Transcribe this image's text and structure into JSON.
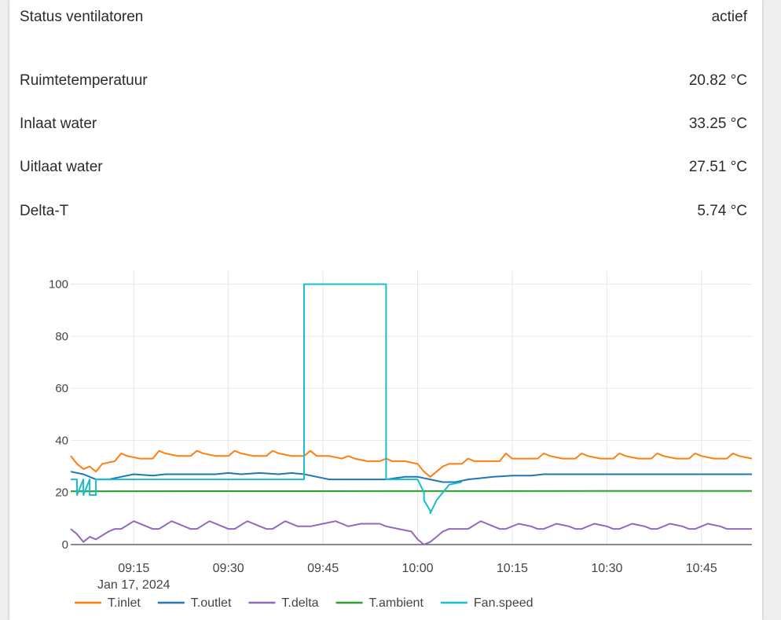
{
  "status": {
    "label": "Status ventilatoren",
    "value": "actief"
  },
  "readings": [
    {
      "label": "Ruimtetemperatuur",
      "value": "20.82 °C"
    },
    {
      "label": "Inlaat water",
      "value": "33.25 °C"
    },
    {
      "label": "Uitlaat water",
      "value": "27.51 °C"
    },
    {
      "label": "Delta-T",
      "value": "5.74 °C"
    }
  ],
  "chart_data": {
    "type": "line",
    "x_ticks": [
      "09:15",
      "09:30",
      "09:45",
      "10:00",
      "10:15",
      "10:30",
      "10:45"
    ],
    "x_date_label": "Jan 17, 2024",
    "y_ticks": [
      0,
      20,
      40,
      60,
      80,
      100
    ],
    "xlim": [
      "09:05",
      "10:53"
    ],
    "ylim": [
      0,
      105
    ],
    "grid": true,
    "legend_position": "bottom",
    "series": [
      {
        "name": "T.inlet",
        "color": "#ff7f0e",
        "x": [
          "09:05",
          "09:06",
          "09:07",
          "09:08",
          "09:09",
          "09:10",
          "09:12",
          "09:13",
          "09:14",
          "09:16",
          "09:18",
          "09:19",
          "09:20",
          "09:22",
          "09:24",
          "09:25",
          "09:26",
          "09:28",
          "09:30",
          "09:31",
          "09:32",
          "09:34",
          "09:36",
          "09:37",
          "09:38",
          "09:40",
          "09:42",
          "09:43",
          "09:44",
          "09:46",
          "09:48",
          "09:49",
          "09:50",
          "09:52",
          "09:54",
          "09:55",
          "09:56",
          "09:58",
          "10:00",
          "10:01",
          "10:02",
          "10:03",
          "10:04",
          "10:05",
          "10:07",
          "10:08",
          "10:09",
          "10:11",
          "10:13",
          "10:14",
          "10:15",
          "10:17",
          "10:19",
          "10:20",
          "10:21",
          "10:23",
          "10:25",
          "10:26",
          "10:27",
          "10:29",
          "10:31",
          "10:32",
          "10:33",
          "10:35",
          "10:37",
          "10:38",
          "10:39",
          "10:41",
          "10:43",
          "10:44",
          "10:45",
          "10:47",
          "10:49",
          "10:50",
          "10:51",
          "10:53"
        ],
        "values": [
          34,
          31,
          29,
          30,
          28,
          31,
          32,
          35,
          34,
          33,
          33,
          36,
          35,
          34,
          34,
          36,
          35,
          34,
          34,
          36,
          35,
          34,
          34,
          36,
          35,
          34,
          34,
          36,
          34,
          34,
          33,
          34,
          33,
          32,
          32,
          33,
          32,
          32,
          31,
          28,
          26,
          28,
          30,
          31,
          31,
          33,
          32,
          32,
          32,
          35,
          33,
          33,
          33,
          35,
          34,
          33,
          33,
          35,
          34,
          33,
          33,
          35,
          34,
          33,
          33,
          35,
          34,
          33,
          33,
          35,
          34,
          33,
          33,
          35,
          34,
          33
        ]
      },
      {
        "name": "T.outlet",
        "color": "#1f77b4",
        "x": [
          "09:05",
          "09:07",
          "09:09",
          "09:11",
          "09:13",
          "09:15",
          "09:18",
          "09:20",
          "09:22",
          "09:25",
          "09:28",
          "09:30",
          "09:32",
          "09:35",
          "09:38",
          "09:40",
          "09:42",
          "09:44",
          "09:46",
          "09:48",
          "09:50",
          "09:52",
          "09:55",
          "09:58",
          "10:00",
          "10:02",
          "10:04",
          "10:06",
          "10:08",
          "10:10",
          "10:12",
          "10:15",
          "10:18",
          "10:20",
          "10:23",
          "10:26",
          "10:29",
          "10:32",
          "10:35",
          "10:38",
          "10:41",
          "10:44",
          "10:47",
          "10:50",
          "10:53"
        ],
        "values": [
          28,
          27,
          25,
          25,
          26,
          27,
          26.5,
          27,
          27,
          27,
          27,
          27.5,
          27,
          27.5,
          27,
          27.5,
          27,
          26,
          25,
          25,
          25,
          25,
          25,
          26,
          26,
          25,
          24,
          24,
          25,
          25.5,
          26,
          26.5,
          26.5,
          27,
          27,
          27,
          27,
          27,
          27,
          27,
          27,
          27,
          27,
          27,
          27
        ]
      },
      {
        "name": "T.delta",
        "color": "#9467bd",
        "x": [
          "09:05",
          "09:06",
          "09:07",
          "09:08",
          "09:09",
          "09:11",
          "09:12",
          "09:13",
          "09:15",
          "09:17",
          "09:18",
          "09:19",
          "09:21",
          "09:23",
          "09:24",
          "09:25",
          "09:27",
          "09:29",
          "09:30",
          "09:31",
          "09:33",
          "09:35",
          "09:36",
          "09:37",
          "09:39",
          "09:41",
          "09:42",
          "09:43",
          "09:45",
          "09:47",
          "09:48",
          "09:49",
          "09:51",
          "09:53",
          "09:54",
          "09:55",
          "09:57",
          "09:59",
          "10:00",
          "10:01",
          "10:02",
          "10:03",
          "10:04",
          "10:05",
          "10:07",
          "10:08",
          "10:10",
          "10:12",
          "10:13",
          "10:14",
          "10:16",
          "10:18",
          "10:19",
          "10:20",
          "10:22",
          "10:24",
          "10:25",
          "10:26",
          "10:28",
          "10:30",
          "10:31",
          "10:32",
          "10:34",
          "10:36",
          "10:37",
          "10:38",
          "10:40",
          "10:42",
          "10:43",
          "10:44",
          "10:46",
          "10:48",
          "10:49",
          "10:50",
          "10:53"
        ],
        "values": [
          6,
          4,
          1,
          3,
          2,
          5,
          6,
          6,
          9,
          7,
          6,
          6,
          9,
          7,
          6,
          6,
          9,
          7,
          6,
          6,
          9,
          7,
          6,
          6,
          9,
          7,
          7,
          7,
          8,
          9,
          8,
          7,
          8,
          8,
          8,
          7,
          6,
          5,
          2,
          0,
          1,
          3,
          5,
          6,
          6,
          6,
          9,
          7,
          6,
          6,
          8,
          7,
          6,
          6,
          8,
          7,
          6,
          6,
          8,
          7,
          6,
          6,
          8,
          7,
          6,
          6,
          8,
          7,
          6,
          6,
          8,
          7,
          6,
          6,
          6
        ]
      },
      {
        "name": "T.ambient",
        "color": "#2ca02c",
        "x": [
          "09:05",
          "10:53"
        ],
        "values": [
          20.5,
          20.6
        ]
      },
      {
        "name": "Fan.speed",
        "color": "#17becf",
        "x": [
          "09:05",
          "09:06",
          "09:06",
          "09:07",
          "09:07",
          "09:08",
          "09:08",
          "09:09",
          "09:09",
          "09:42",
          "09:42",
          "09:55",
          "09:55",
          "09:57",
          "09:59",
          "10:00",
          "10:01",
          "10:01",
          "10:02",
          "10:02",
          "10:03",
          "10:04",
          "10:05",
          "10:07"
        ],
        "values": [
          25,
          25,
          19,
          25,
          19,
          25,
          19,
          19,
          25,
          25,
          100,
          100,
          25,
          25,
          25,
          25,
          20,
          17,
          13,
          12,
          17,
          20,
          23,
          24
        ]
      }
    ]
  }
}
